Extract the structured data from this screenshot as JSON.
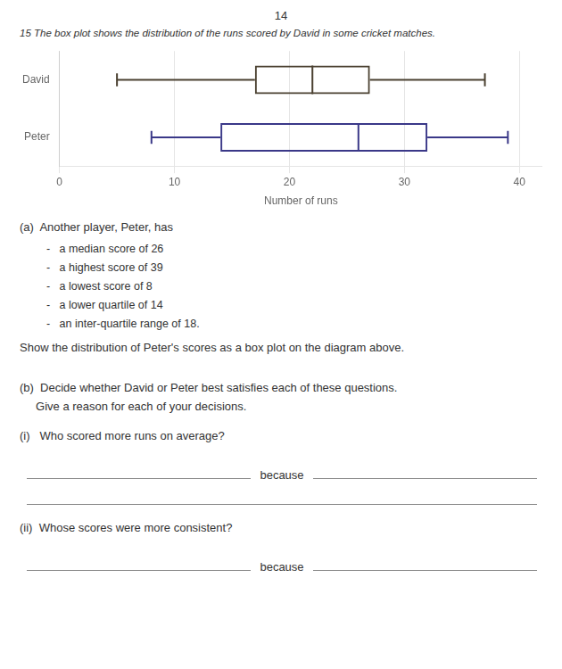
{
  "chart_data": {
    "type": "box",
    "orientation": "horizontal",
    "categories": [
      "David",
      "Peter"
    ],
    "min": [
      5,
      8
    ],
    "q1": [
      17,
      14
    ],
    "median": [
      22,
      26
    ],
    "q3": [
      27,
      32
    ],
    "max": [
      37,
      39
    ],
    "colors": [
      "#4a4030",
      "#3a3888"
    ],
    "xlabel": "Number of runs",
    "xlim": [
      0,
      42
    ],
    "xticks": [
      0,
      10,
      20,
      30,
      40
    ],
    "grid": true,
    "page_number": "14",
    "question": "15  The box plot shows the distribution of the runs scored by David in some cricket matches.",
    "part_a": "(a)  Another player, Peter, has",
    "bullets": [
      "-   a median score of 26",
      "-   a highest score of 39",
      "-   a lowest score of 8",
      "-   a lower quartile of 14",
      "-   an inter-quartile range of 18."
    ],
    "instruction": "Show the distribution of Peter's scores as a box plot on the diagram above.",
    "part_b": [
      "(b)  Decide whether David or Peter best satisfies each of these questions.",
      "     Give a reason for each of your decisions."
    ],
    "sub_i": "(i)   Who scored more runs on average?",
    "sub_ii": "(ii)  Whose scores were more consistent?",
    "because": [
      "because",
      "because"
    ]
  }
}
